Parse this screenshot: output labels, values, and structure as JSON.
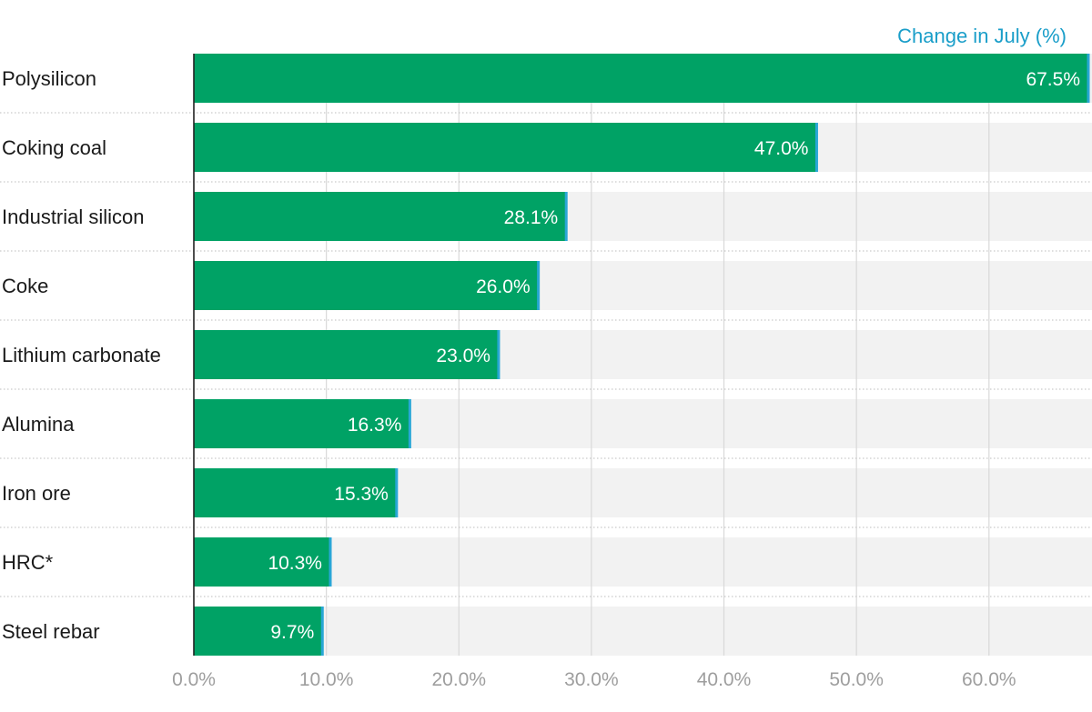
{
  "chart_data": {
    "type": "bar",
    "orientation": "horizontal",
    "value_header": "Change in July (%)",
    "categories": [
      "Polysilicon",
      "Coking coal",
      "Industrial silicon",
      "Coke",
      "Lithium carbonate",
      "Alumina",
      "Iron ore",
      "HRC*",
      "Steel rebar"
    ],
    "values": [
      67.5,
      47.0,
      28.1,
      26.0,
      23.0,
      16.3,
      15.3,
      10.3,
      9.7
    ],
    "value_labels": [
      "67.5%",
      "47.0%",
      "28.1%",
      "26.0%",
      "23.0%",
      "16.3%",
      "15.3%",
      "10.3%",
      "9.7%"
    ],
    "xlim": [
      0,
      67.5
    ],
    "x_ticks": [
      0,
      10,
      20,
      30,
      40,
      50,
      60
    ],
    "x_tick_labels": [
      "0.0%",
      "10.0%",
      "20.0%",
      "30.0%",
      "40.0%",
      "50.0%",
      "60.0%"
    ],
    "grid": true,
    "colors": {
      "bar": "#00a265",
      "bar_end_marker": "#29a7d6",
      "track": "#f2f2f2",
      "header": "#1a9ec9",
      "gridline": "#d9d9d9",
      "axis": "#222222",
      "separator": "#bdbdbd"
    }
  }
}
